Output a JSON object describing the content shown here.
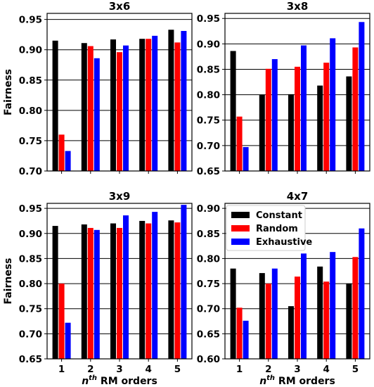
{
  "chart_data": {
    "type": "bar",
    "ylabel": "Fairness",
    "xlabel_base": "n",
    "xlabel_sup": "th",
    "xlabel_rest": " RM orders",
    "categories": [
      "1",
      "2",
      "3",
      "4",
      "5"
    ],
    "series_names": [
      "Constant",
      "Random",
      "Exhaustive"
    ],
    "colors": [
      "#000000",
      "#ff0000",
      "#0000ff"
    ],
    "panels": [
      {
        "title": "3x6",
        "ylim": [
          0.7,
          0.96
        ],
        "yticks": [
          "0.70",
          "0.75",
          "0.80",
          "0.85",
          "0.90",
          "0.95"
        ],
        "series": [
          {
            "name": "Constant",
            "values": [
              0.915,
              0.911,
              0.917,
              0.918,
              0.933
            ]
          },
          {
            "name": "Random",
            "values": [
              0.76,
              0.906,
              0.896,
              0.918,
              0.912
            ]
          },
          {
            "name": "Exhaustive",
            "values": [
              0.733,
              0.886,
              0.907,
              0.923,
              0.931
            ]
          }
        ]
      },
      {
        "title": "3x8",
        "ylim": [
          0.65,
          0.96
        ],
        "yticks": [
          "0.65",
          "0.70",
          "0.75",
          "0.80",
          "0.85",
          "0.90",
          "0.95"
        ],
        "series": [
          {
            "name": "Constant",
            "values": [
              0.886,
              0.8,
              0.801,
              0.818,
              0.836
            ]
          },
          {
            "name": "Random",
            "values": [
              0.757,
              0.851,
              0.855,
              0.863,
              0.893
            ]
          },
          {
            "name": "Exhaustive",
            "values": [
              0.697,
              0.87,
              0.897,
              0.911,
              0.943
            ]
          }
        ]
      },
      {
        "title": "3x9",
        "ylim": [
          0.65,
          0.96
        ],
        "yticks": [
          "0.65",
          "0.70",
          "0.75",
          "0.80",
          "0.85",
          "0.90",
          "0.95"
        ],
        "series": [
          {
            "name": "Constant",
            "values": [
              0.915,
              0.918,
              0.92,
              0.925,
              0.926
            ]
          },
          {
            "name": "Random",
            "values": [
              0.8,
              0.911,
              0.911,
              0.92,
              0.922
            ]
          },
          {
            "name": "Exhaustive",
            "values": [
              0.722,
              0.907,
              0.936,
              0.943,
              0.957
            ]
          }
        ]
      },
      {
        "title": "4x7",
        "ylim": [
          0.6,
          0.91
        ],
        "yticks": [
          "0.60",
          "0.65",
          "0.70",
          "0.75",
          "0.80",
          "0.85",
          "0.90"
        ],
        "legend": "top-left",
        "series": [
          {
            "name": "Constant",
            "values": [
              0.78,
              0.771,
              0.705,
              0.784,
              0.75
            ]
          },
          {
            "name": "Random",
            "values": [
              0.702,
              0.75,
              0.764,
              0.754,
              0.803
            ]
          },
          {
            "name": "Exhaustive",
            "values": [
              0.676,
              0.78,
              0.81,
              0.813,
              0.86
            ]
          }
        ]
      }
    ]
  }
}
